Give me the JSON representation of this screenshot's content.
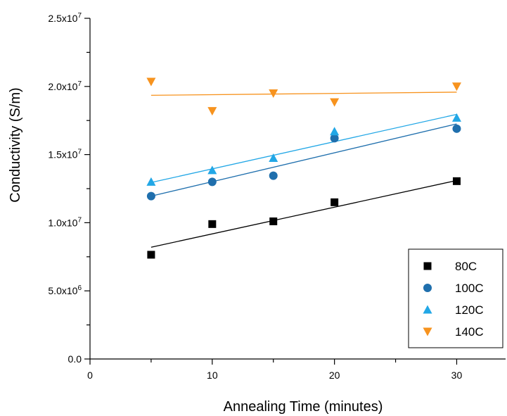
{
  "chart_data": {
    "type": "scatter",
    "title": "",
    "xlabel": "Annealing Time (minutes)",
    "ylabel": "Conductivity (S/m)",
    "xlim": [
      0,
      34
    ],
    "ylim": [
      0,
      25000000
    ],
    "x_ticks": [
      0,
      10,
      20,
      30
    ],
    "x_tick_labels": [
      "0",
      "10",
      "20",
      "30"
    ],
    "y_ticks": [
      0,
      5000000,
      10000000,
      15000000,
      20000000,
      25000000
    ],
    "y_tick_labels": [
      {
        "base": "0.0",
        "exp": ""
      },
      {
        "base": "5.0x10",
        "exp": "6"
      },
      {
        "base": "1.0x10",
        "exp": "7"
      },
      {
        "base": "1.5x10",
        "exp": "7"
      },
      {
        "base": "2.0x10",
        "exp": "7"
      },
      {
        "base": "2.5x10",
        "exp": "7"
      }
    ],
    "grid": false,
    "legend_position": "bottom-right",
    "series": [
      {
        "name": "80C",
        "marker": "square",
        "color": "#000000",
        "x": [
          5,
          10,
          15,
          20,
          30
        ],
        "y": [
          7650000,
          9900000,
          10100000,
          11500000,
          13050000
        ],
        "fit": {
          "x": [
            5,
            30
          ],
          "y": [
            8200000,
            13100000
          ]
        }
      },
      {
        "name": "100C",
        "marker": "circle",
        "color": "#1f6fad",
        "x": [
          5,
          10,
          15,
          20,
          30
        ],
        "y": [
          11950000,
          13000000,
          13450000,
          16200000,
          16900000
        ],
        "fit": {
          "x": [
            5,
            30
          ],
          "y": [
            11950000,
            17250000
          ]
        }
      },
      {
        "name": "120C",
        "marker": "triangle-up",
        "color": "#22a7e6",
        "x": [
          5,
          10,
          15,
          20,
          30
        ],
        "y": [
          13000000,
          13850000,
          14750000,
          16700000,
          17700000
        ],
        "fit": {
          "x": [
            5,
            30
          ],
          "y": [
            12950000,
            17950000
          ]
        }
      },
      {
        "name": "140C",
        "marker": "triangle-down",
        "color": "#f7931e",
        "x": [
          5,
          10,
          15,
          20,
          30
        ],
        "y": [
          20350000,
          18200000,
          19500000,
          18850000,
          20000000
        ],
        "fit": {
          "x": [
            5,
            30
          ],
          "y": [
            19350000,
            19580000
          ]
        }
      }
    ]
  }
}
